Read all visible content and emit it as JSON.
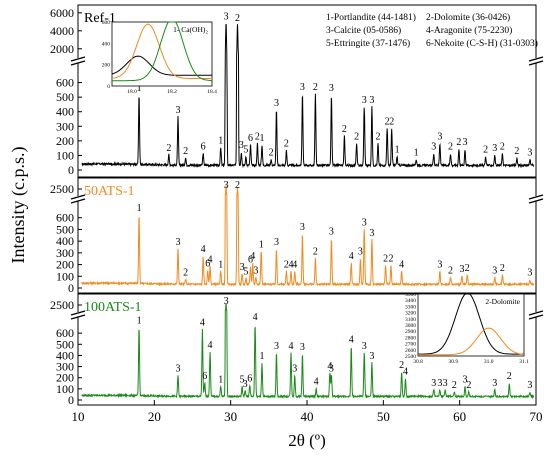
{
  "chart_data": {
    "type": "line",
    "xlabel": "2θ (º)",
    "ylabel": "Intensity (c.p.s.)",
    "xlim": [
      10,
      70
    ],
    "x_ticks": [
      10,
      20,
      30,
      40,
      50,
      60,
      70
    ],
    "legend": {
      "placement": "top-right",
      "entries": [
        "1-Portlandite (44-1481)",
        "2-Dolomite (36-0426)",
        "3-Calcite (05-0586)",
        "4-Aragonite (75-2230)",
        "5-Ettringite (37-1476)",
        "6-Nekoite (C-S-H) (31-0303)"
      ]
    },
    "panels": [
      {
        "name": "Ref-1",
        "color": "#000000",
        "y_ticks_lower": [
          0,
          100,
          200,
          300,
          400,
          500,
          600
        ],
        "y_ticks_upper": [
          2000,
          4000,
          6000
        ],
        "peaks": [
          {
            "x": 18.0,
            "y": 480,
            "label": "1"
          },
          {
            "x": 21.9,
            "y": 70,
            "label": "2"
          },
          {
            "x": 23.1,
            "y": 330,
            "label": "3"
          },
          {
            "x": 24.1,
            "y": 50,
            "label": "2"
          },
          {
            "x": 26.4,
            "y": 80,
            "label": "6"
          },
          {
            "x": 28.7,
            "y": 120,
            "label": "1"
          },
          {
            "x": 29.4,
            "y": 4900,
            "label": "3"
          },
          {
            "x": 30.9,
            "y": 4700,
            "label": "2"
          },
          {
            "x": 31.4,
            "y": 90,
            "label": "3"
          },
          {
            "x": 32.0,
            "y": 60,
            "label": "5"
          },
          {
            "x": 32.6,
            "y": 140,
            "label": "6"
          },
          {
            "x": 33.5,
            "y": 150,
            "label": "2"
          },
          {
            "x": 34.1,
            "y": 140,
            "label": "1"
          },
          {
            "x": 35.3,
            "y": 40,
            "label": "2"
          },
          {
            "x": 36.0,
            "y": 380,
            "label": "3"
          },
          {
            "x": 37.3,
            "y": 100,
            "label": "2"
          },
          {
            "x": 39.4,
            "y": 490,
            "label": "3"
          },
          {
            "x": 41.1,
            "y": 490,
            "label": "2"
          },
          {
            "x": 43.2,
            "y": 480,
            "label": "3"
          },
          {
            "x": 44.9,
            "y": 200,
            "label": "2"
          },
          {
            "x": 46.5,
            "y": 150,
            "label": "2"
          },
          {
            "x": 47.5,
            "y": 400,
            "label": "3"
          },
          {
            "x": 48.5,
            "y": 400,
            "label": "3"
          },
          {
            "x": 49.3,
            "y": 150,
            "label": "2"
          },
          {
            "x": 50.5,
            "y": 250,
            "label": "2"
          },
          {
            "x": 51.1,
            "y": 250,
            "label": "2"
          },
          {
            "x": 51.8,
            "y": 60,
            "label": "1"
          },
          {
            "x": 54.3,
            "y": 40,
            "label": "1"
          },
          {
            "x": 56.6,
            "y": 80,
            "label": "3"
          },
          {
            "x": 57.4,
            "y": 150,
            "label": "3"
          },
          {
            "x": 58.8,
            "y": 80,
            "label": "2"
          },
          {
            "x": 59.9,
            "y": 110,
            "label": "2"
          },
          {
            "x": 60.7,
            "y": 110,
            "label": "3"
          },
          {
            "x": 63.4,
            "y": 60,
            "label": "2"
          },
          {
            "x": 64.6,
            "y": 70,
            "label": "3"
          },
          {
            "x": 65.6,
            "y": 80,
            "label": "2"
          },
          {
            "x": 67.5,
            "y": 50,
            "label": "2"
          },
          {
            "x": 69.2,
            "y": 40,
            "label": "3"
          }
        ]
      },
      {
        "name": "50ATS-1",
        "color": "#F28A1E",
        "y_ticks_lower": [
          0,
          100,
          200,
          300,
          400,
          500,
          600
        ],
        "y_ticks_upper": [
          2500
        ],
        "peaks": [
          {
            "x": 18.0,
            "y": 590,
            "label": "1"
          },
          {
            "x": 23.1,
            "y": 300,
            "label": "3"
          },
          {
            "x": 24.1,
            "y": 40,
            "label": "2"
          },
          {
            "x": 26.4,
            "y": 240,
            "label": "4"
          },
          {
            "x": 27.0,
            "y": 120,
            "label": "6"
          },
          {
            "x": 27.3,
            "y": 150,
            "label": "4"
          },
          {
            "x": 28.7,
            "y": 110,
            "label": "1"
          },
          {
            "x": 29.4,
            "y": 2900,
            "label": "3"
          },
          {
            "x": 30.9,
            "y": 2600,
            "label": "2"
          },
          {
            "x": 31.5,
            "y": 90,
            "label": "3"
          },
          {
            "x": 32.0,
            "y": 50,
            "label": "5"
          },
          {
            "x": 32.6,
            "y": 150,
            "label": "6"
          },
          {
            "x": 32.9,
            "y": 180,
            "label": "4"
          },
          {
            "x": 33.3,
            "y": 60,
            "label": "3"
          },
          {
            "x": 34.0,
            "y": 280,
            "label": "1"
          },
          {
            "x": 36.0,
            "y": 300,
            "label": "3"
          },
          {
            "x": 37.3,
            "y": 110,
            "label": "2"
          },
          {
            "x": 37.9,
            "y": 110,
            "label": "4"
          },
          {
            "x": 38.4,
            "y": 110,
            "label": "4"
          },
          {
            "x": 39.4,
            "y": 430,
            "label": "3"
          },
          {
            "x": 41.1,
            "y": 220,
            "label": "2"
          },
          {
            "x": 43.2,
            "y": 390,
            "label": "3"
          },
          {
            "x": 45.8,
            "y": 180,
            "label": "4"
          },
          {
            "x": 47.0,
            "y": 220,
            "label": "3"
          },
          {
            "x": 47.5,
            "y": 470,
            "label": "3"
          },
          {
            "x": 48.5,
            "y": 380,
            "label": "3"
          },
          {
            "x": 50.3,
            "y": 160,
            "label": "2"
          },
          {
            "x": 51.0,
            "y": 160,
            "label": "2"
          },
          {
            "x": 52.4,
            "y": 110,
            "label": "4"
          },
          {
            "x": 57.4,
            "y": 110,
            "label": "3"
          },
          {
            "x": 58.8,
            "y": 60,
            "label": "2"
          },
          {
            "x": 60.3,
            "y": 70,
            "label": "3"
          },
          {
            "x": 61.0,
            "y": 80,
            "label": "2"
          },
          {
            "x": 64.6,
            "y": 60,
            "label": "3"
          },
          {
            "x": 65.6,
            "y": 80,
            "label": "2"
          },
          {
            "x": 69.2,
            "y": 40,
            "label": "3"
          }
        ]
      },
      {
        "name": "100ATS-1",
        "color": "#1A8A1A",
        "y_ticks_lower": [
          0,
          100,
          200,
          300,
          400,
          500,
          600
        ],
        "y_ticks_upper": [
          2500
        ],
        "peaks": [
          {
            "x": 18.0,
            "y": 620,
            "label": "1"
          },
          {
            "x": 23.1,
            "y": 190,
            "label": "3"
          },
          {
            "x": 26.3,
            "y": 600,
            "label": "4"
          },
          {
            "x": 26.6,
            "y": 120,
            "label": "6"
          },
          {
            "x": 27.3,
            "y": 400,
            "label": "4"
          },
          {
            "x": 28.7,
            "y": 90,
            "label": "1"
          },
          {
            "x": 29.4,
            "y": 2700,
            "label": "3"
          },
          {
            "x": 31.5,
            "y": 90,
            "label": "5"
          },
          {
            "x": 31.9,
            "y": 50,
            "label": "3"
          },
          {
            "x": 32.5,
            "y": 100,
            "label": "6"
          },
          {
            "x": 33.2,
            "y": 650,
            "label": "4"
          },
          {
            "x": 34.1,
            "y": 300,
            "label": "1"
          },
          {
            "x": 36.0,
            "y": 390,
            "label": "3"
          },
          {
            "x": 37.9,
            "y": 390,
            "label": "4"
          },
          {
            "x": 38.4,
            "y": 190,
            "label": "3"
          },
          {
            "x": 39.4,
            "y": 380,
            "label": "3"
          },
          {
            "x": 41.2,
            "y": 70,
            "label": "4"
          },
          {
            "x": 43.0,
            "y": 210,
            "label": "4"
          },
          {
            "x": 43.2,
            "y": 190,
            "label": "3"
          },
          {
            "x": 45.8,
            "y": 450,
            "label": "4"
          },
          {
            "x": 47.5,
            "y": 390,
            "label": "3"
          },
          {
            "x": 48.5,
            "y": 300,
            "label": "3"
          },
          {
            "x": 52.4,
            "y": 220,
            "label": "2"
          },
          {
            "x": 52.9,
            "y": 160,
            "label": "4"
          },
          {
            "x": 56.6,
            "y": 60,
            "label": "3"
          },
          {
            "x": 57.4,
            "y": 60,
            "label": "3"
          },
          {
            "x": 58.1,
            "y": 60,
            "label": "3"
          },
          {
            "x": 59.3,
            "y": 40,
            "label": "2"
          },
          {
            "x": 60.7,
            "y": 90,
            "label": "3"
          },
          {
            "x": 61.2,
            "y": 40,
            "label": "2"
          },
          {
            "x": 64.6,
            "y": 60,
            "label": "3"
          },
          {
            "x": 66.5,
            "y": 120,
            "label": "2"
          },
          {
            "x": 69.2,
            "y": 40,
            "label": "3"
          }
        ]
      }
    ],
    "insets": [
      {
        "panel": "Ref-1",
        "placement": "top-left",
        "xlim": [
          17.9,
          18.4
        ],
        "x_ticks": [
          18.0,
          18.2,
          18.4
        ],
        "y_ticks": [
          0,
          200,
          400,
          600
        ],
        "annotation": "1- Ca(OH)₂",
        "series": [
          {
            "color": "#000000",
            "center": 18.03,
            "peak": 280,
            "base": 100
          },
          {
            "color": "#F28A1E",
            "center": 18.08,
            "peak": 580,
            "base": 70
          },
          {
            "color": "#1A8A1A",
            "center": 18.2,
            "peak": 630,
            "base": 50
          }
        ]
      },
      {
        "panel": "100ATS-1",
        "placement": "top-right",
        "xlim": [
          30.8,
          31.1
        ],
        "x_ticks": [
          30.8,
          30.9,
          31.0,
          31.1
        ],
        "y_ticks": [
          2500,
          2600,
          2700,
          2800,
          2900,
          3000,
          3100,
          3200,
          3300,
          3400,
          3500
        ],
        "annotation": "2-Dolomite",
        "series": [
          {
            "color": "#000000",
            "center": 30.94,
            "peak": 3520,
            "base": 2530
          },
          {
            "color": "#F28A1E",
            "center": 31.0,
            "peak": 2950,
            "base": 2520
          }
        ]
      }
    ]
  }
}
